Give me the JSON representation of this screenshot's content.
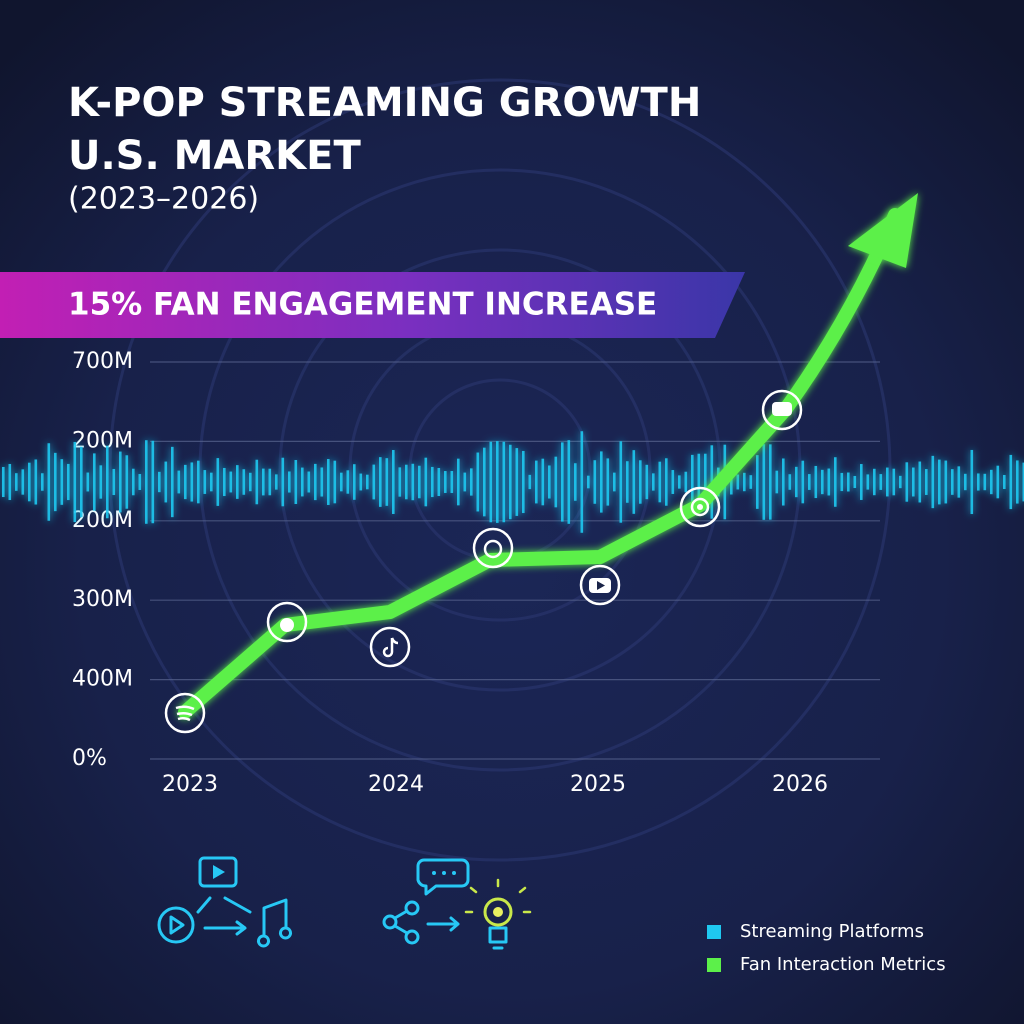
{
  "chart_data": {
    "type": "line",
    "title": "K-POP STREAMING GROWTH",
    "title_line2": "U.S. MARKET",
    "subtitle": "(2023–2026)",
    "banner": "15% FAN ENGAGEMENT INCREASE",
    "categories": [
      "2023",
      "2024",
      "2025",
      "2026"
    ],
    "y_axis_labels": [
      "700M",
      "200M",
      "200M",
      "300M",
      "400M",
      "0%"
    ],
    "grid": true,
    "legend": [
      {
        "name": "Streaming Platforms",
        "color": "#1fc8f0"
      },
      {
        "name": "Fan Interaction Metrics",
        "color": "#5cf04a"
      }
    ]
  }
}
